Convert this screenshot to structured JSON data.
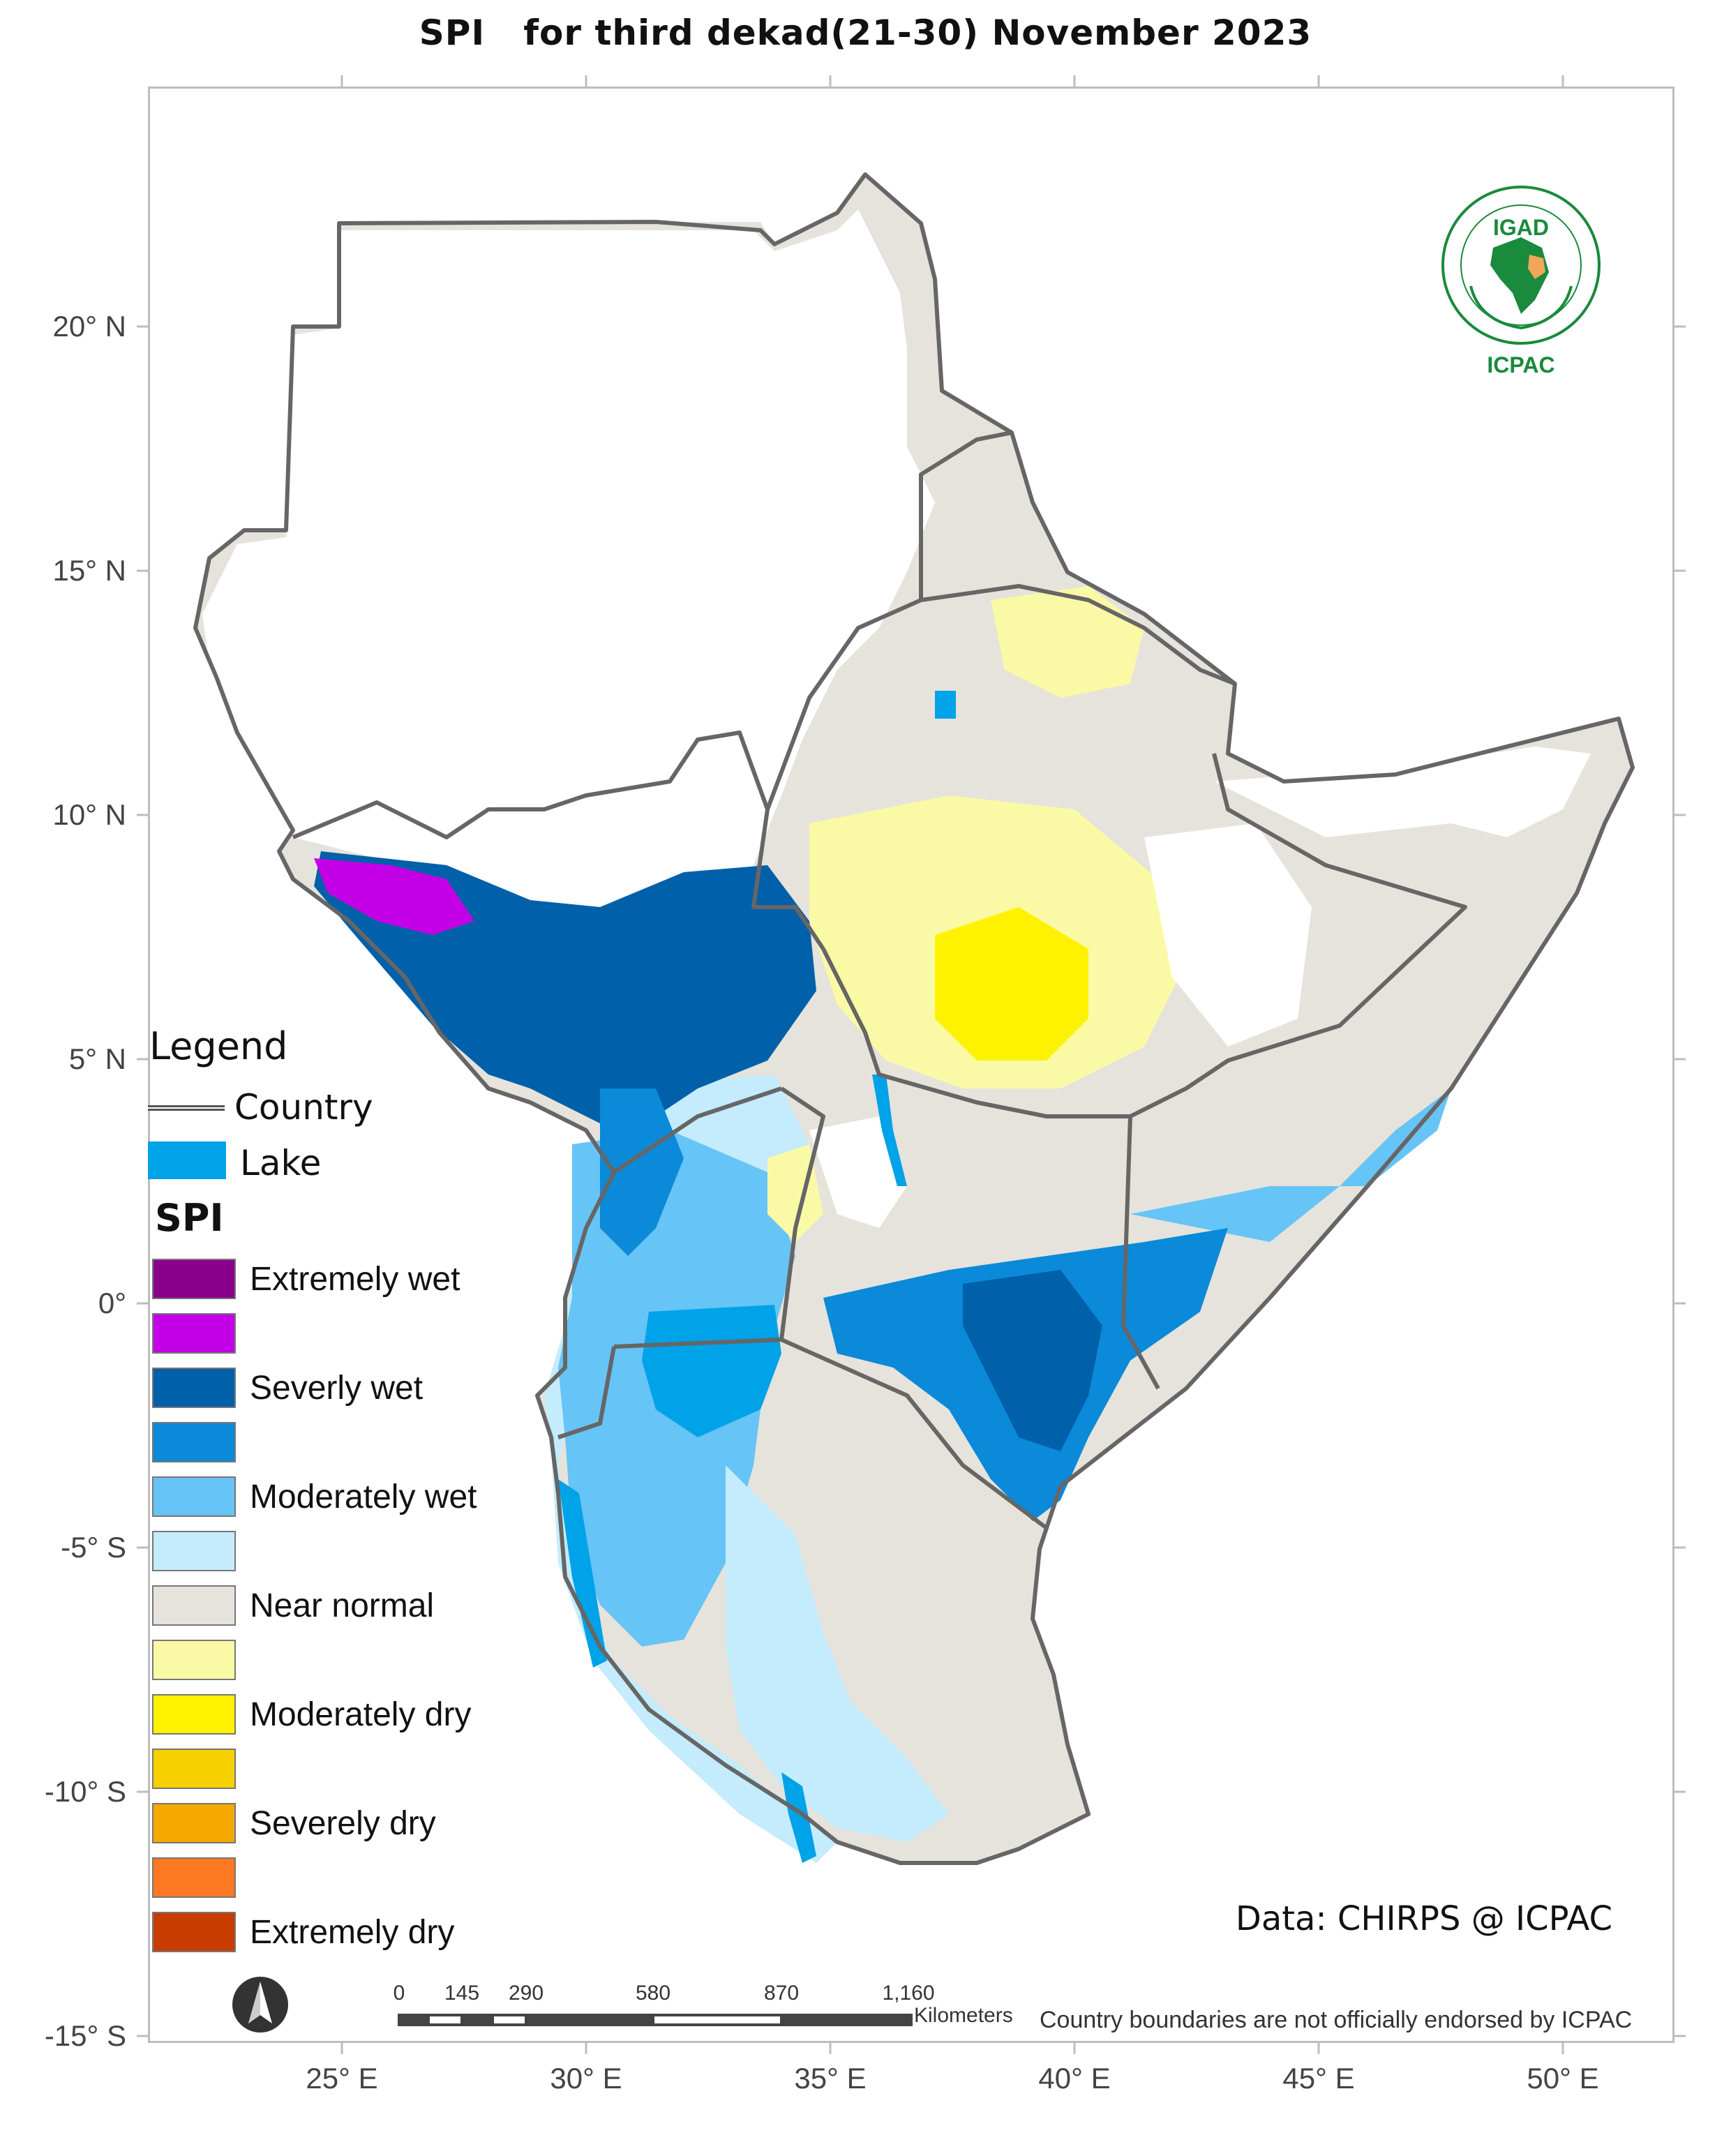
{
  "title": "SPI   for third dekad(21-30) November 2023",
  "axes": {
    "lat_labels": [
      "20° N",
      "15° N",
      "10° N",
      "5° N",
      "0°",
      "-5° S",
      "-10° S",
      "-15° S"
    ],
    "lon_labels": [
      "25° E",
      "30° E",
      "35° E",
      "40° E",
      "45° E",
      "50° E"
    ]
  },
  "legend": {
    "title": "Legend",
    "country_label": "Country",
    "lake_label": "Lake",
    "spi_heading": "SPI",
    "classes": [
      {
        "label": "Extremely wet",
        "color": "#8b008b"
      },
      {
        "label": "",
        "color": "#c400e6"
      },
      {
        "label": "Severly wet",
        "color": "#0060aa"
      },
      {
        "label": "",
        "color": "#0a8ad8"
      },
      {
        "label": "Moderately wet",
        "color": "#66c4f6"
      },
      {
        "label": "",
        "color": "#c4ecfc"
      },
      {
        "label": "Near normal",
        "color": "#e6e3dc"
      },
      {
        "label": "",
        "color": "#fafaa6"
      },
      {
        "label": "Moderately dry",
        "color": "#fff200"
      },
      {
        "label": "",
        "color": "#f7d000"
      },
      {
        "label": "Severely dry",
        "color": "#f5a800"
      },
      {
        "label": "",
        "color": "#ff7824"
      },
      {
        "label": "Extremely dry",
        "color": "#c83c00"
      }
    ]
  },
  "logo": {
    "top_text": "IGAD",
    "bottom_text": "ICPAC",
    "color": "#1a8a3c"
  },
  "credit": "Data: CHIRPS @ ICPAC",
  "disclaimer": "Country boundaries are not officially endorsed by ICPAC",
  "scalebar": {
    "labels": [
      "0",
      "145",
      "290",
      "580",
      "870",
      "1,160"
    ],
    "units": "Kilometers"
  },
  "colors": {
    "border": "#666666",
    "lake": "#00a2e8",
    "near_normal": "#e6e3dc",
    "no_data": "#ffffff"
  }
}
